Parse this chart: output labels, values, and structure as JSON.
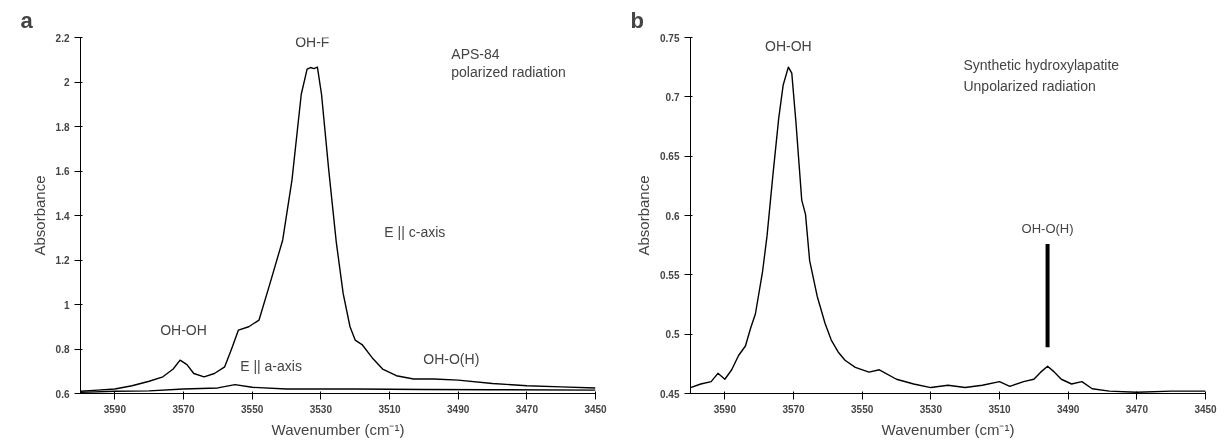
{
  "chart_data": [
    {
      "type": "line",
      "xlabel": "Wavenumber (cm⁻¹)",
      "ylabel": "Absorbance",
      "xlim": [
        3600,
        3450
      ],
      "xticks": [
        3590,
        3570,
        3550,
        3530,
        3510,
        3490,
        3470,
        3450
      ],
      "ylim": [
        0.6,
        2.2
      ],
      "yticks": [
        0.6,
        0.8,
        1,
        1.2,
        1.4,
        1.6,
        1.8,
        2,
        2.2
      ],
      "grid": false,
      "marker": "none",
      "line_style": "solid",
      "series": [
        {
          "color": "#000000",
          "x": [
            3600,
            3595,
            3590,
            3585,
            3580,
            3576,
            3573,
            3571,
            3569,
            3567,
            3564,
            3561,
            3558,
            3556,
            3554,
            3551,
            3548,
            3544.8,
            3541.1,
            3538.4,
            3535.7,
            3534,
            3533,
            3532,
            3531,
            3529.8,
            3527.7,
            3525.5,
            3523.5,
            3521.5,
            3520,
            3518,
            3515,
            3512,
            3508,
            3503,
            3497,
            3490,
            3480,
            3470,
            3460,
            3450
          ],
          "values": [
            0.61,
            0.615,
            0.62,
            0.635,
            0.655,
            0.675,
            0.71,
            0.75,
            0.73,
            0.69,
            0.675,
            0.69,
            0.72,
            0.8,
            0.885,
            0.9,
            0.93,
            1.095,
            1.29,
            1.56,
            1.945,
            2.058,
            2.065,
            2.06,
            2.067,
            1.945,
            1.605,
            1.28,
            1.05,
            0.9,
            0.84,
            0.82,
            0.76,
            0.71,
            0.68,
            0.665,
            0.665,
            0.66,
            0.645,
            0.635,
            0.63,
            0.625
          ]
        },
        {
          "color": "#000000",
          "x": [
            3600,
            3590,
            3580,
            3570,
            3560,
            3555,
            3550,
            3540,
            3520,
            3500,
            3480,
            3450
          ],
          "values": [
            0.605,
            0.61,
            0.612,
            0.62,
            0.625,
            0.64,
            0.628,
            0.62,
            0.62,
            0.618,
            0.617,
            0.615
          ]
        }
      ],
      "annotations": [
        "a",
        "APS-84",
        "polarized radiation",
        "OH-F",
        "E || c-axis",
        "OH-OH",
        "E || a-axis",
        "OH-O(H)"
      ]
    },
    {
      "type": "line",
      "xlabel": "Wavenumber (cm⁻¹)",
      "ylabel": "Absorbance",
      "xlim": [
        3600,
        3450
      ],
      "xticks": [
        3590,
        3570,
        3550,
        3530,
        3510,
        3490,
        3470,
        3450
      ],
      "ylim": [
        0.45,
        0.75
      ],
      "yticks": [
        0.45,
        0.5,
        0.55,
        0.6,
        0.65,
        0.7,
        0.75
      ],
      "grid": false,
      "marker": "none",
      "line_style": "solid",
      "series": [
        {
          "color": "#000000",
          "x": [
            3600,
            3597,
            3594,
            3592,
            3590,
            3588,
            3586,
            3584,
            3582.5,
            3581.1,
            3579,
            3577.7,
            3576,
            3574.3,
            3573,
            3571.5,
            3570.5,
            3569.3,
            3567.6,
            3566.5,
            3565.3,
            3563.1,
            3560.8,
            3559,
            3557,
            3555,
            3552,
            3548,
            3545,
            3540,
            3535,
            3530,
            3525,
            3520,
            3515,
            3510,
            3507,
            3503,
            3500,
            3498,
            3496,
            3494,
            3492,
            3489,
            3486,
            3483,
            3478,
            3470,
            3460,
            3450
          ],
          "values": [
            0.455,
            0.458,
            0.46,
            0.467,
            0.462,
            0.47,
            0.482,
            0.49,
            0.505,
            0.517,
            0.553,
            0.583,
            0.634,
            0.682,
            0.71,
            0.725,
            0.72,
            0.679,
            0.613,
            0.601,
            0.562,
            0.532,
            0.509,
            0.495,
            0.485,
            0.478,
            0.472,
            0.468,
            0.47,
            0.462,
            0.458,
            0.455,
            0.457,
            0.455,
            0.457,
            0.46,
            0.456,
            0.46,
            0.462,
            0.468,
            0.473,
            0.468,
            0.462,
            0.458,
            0.46,
            0.454,
            0.452,
            0.451,
            0.452,
            0.452
          ]
        }
      ],
      "ref_lines": [
        {
          "axis": "x",
          "value": 3496,
          "label": "OH-O(H)"
        }
      ],
      "annotations": [
        "b",
        "Synthetic hydroxylapatite",
        "Unpolarized radiation",
        "OH-OH"
      ]
    }
  ]
}
